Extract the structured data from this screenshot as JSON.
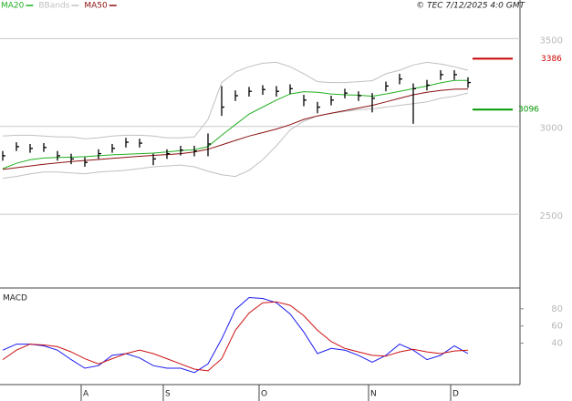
{
  "chart_data": {
    "type": "ohlc",
    "source": "© TEC 7/12/2025 4:0 GMT",
    "categories": [
      null,
      null,
      null,
      null,
      null,
      null,
      "A",
      null,
      null,
      null,
      null,
      null,
      "S",
      null,
      null,
      null,
      null,
      null,
      null,
      "O",
      null,
      null,
      null,
      null,
      null,
      null,
      null,
      "N",
      null,
      null,
      null,
      null,
      null,
      "D",
      null
    ],
    "bar_color": "#000000",
    "high": [
      2860,
      2910,
      2900,
      2905,
      2860,
      2845,
      2825,
      2870,
      2900,
      2935,
      2930,
      2845,
      2870,
      2890,
      2890,
      2960,
      3230,
      3205,
      3225,
      3235,
      3230,
      3240,
      3180,
      3140,
      3175,
      3215,
      3200,
      3190,
      3255,
      3300,
      3245,
      3265,
      3320,
      3320,
      3280
    ],
    "low": [
      2805,
      2860,
      2850,
      2855,
      2805,
      2785,
      2770,
      2815,
      2850,
      2880,
      2880,
      2780,
      2815,
      2835,
      2830,
      2830,
      3060,
      3145,
      3170,
      3180,
      3170,
      3185,
      3115,
      3075,
      3120,
      3160,
      3145,
      3080,
      3200,
      3240,
      3015,
      3205,
      3265,
      3265,
      3220
    ],
    "close": [
      2833,
      2885,
      2875,
      2880,
      2833,
      2815,
      2795,
      2845,
      2875,
      2910,
      2905,
      2815,
      2845,
      2865,
      2860,
      2900,
      3110,
      3175,
      3200,
      3210,
      3200,
      3215,
      3150,
      3110,
      3150,
      3190,
      3175,
      3160,
      3230,
      3270,
      3215,
      3235,
      3295,
      3295,
      3250
    ],
    "series": [
      {
        "name": "MA20",
        "color": "#22b022",
        "values": [
          2760,
          2790,
          2810,
          2820,
          2823,
          2825,
          2828,
          2833,
          2838,
          2842,
          2845,
          2848,
          2855,
          2862,
          2868,
          2885,
          2950,
          3010,
          3070,
          3110,
          3150,
          3185,
          3198,
          3195,
          3185,
          3180,
          3178,
          3172,
          3185,
          3200,
          3215,
          3230,
          3248,
          3262,
          3262
        ]
      },
      {
        "name": "BBands",
        "color": "#c0c0c0",
        "values": [
          2945,
          2950,
          2950,
          2945,
          2940,
          2940,
          2930,
          2935,
          2945,
          2950,
          2950,
          2945,
          2935,
          2935,
          2940,
          3040,
          3250,
          3310,
          3340,
          3360,
          3365,
          3340,
          3300,
          3255,
          3250,
          3250,
          3255,
          3260,
          3300,
          3320,
          3350,
          3365,
          3355,
          3340,
          3320
        ],
        "lower": [
          2705,
          2715,
          2730,
          2740,
          2740,
          2735,
          2730,
          2740,
          2745,
          2750,
          2760,
          2770,
          2775,
          2780,
          2770,
          2745,
          2725,
          2715,
          2750,
          2810,
          2890,
          2980,
          3030,
          3060,
          3075,
          3085,
          3095,
          3100,
          3110,
          3120,
          3130,
          3140,
          3160,
          3172,
          3190
        ]
      },
      {
        "name": "MA50",
        "color": "#8b1010",
        "values": [
          2755,
          2765,
          2775,
          2785,
          2792,
          2800,
          2806,
          2812,
          2818,
          2824,
          2830,
          2835,
          2840,
          2845,
          2855,
          2870,
          2895,
          2920,
          2945,
          2965,
          2985,
          3010,
          3040,
          3060,
          3075,
          3090,
          3105,
          3120,
          3140,
          3160,
          3180,
          3195,
          3205,
          3212,
          3213
        ]
      }
    ],
    "levels": [
      {
        "value": 3386,
        "color": "#cc0000"
      },
      {
        "value": 3096,
        "color": "#009900"
      }
    ],
    "ylim": [
      2080,
      3720
    ],
    "yticks": [
      2500,
      3000,
      3500
    ],
    "grid": true,
    "macd": {
      "title": "MACD",
      "ylim": [
        -8,
        102
      ],
      "yticks": [
        40,
        60,
        80
      ],
      "series": [
        {
          "color": "#1a1aee",
          "values": [
            32,
            39,
            39,
            37,
            32,
            21,
            11,
            14,
            26,
            28,
            23,
            14,
            11,
            11,
            6,
            16,
            45,
            79,
            93,
            92,
            87,
            74,
            53,
            28,
            34,
            32,
            26,
            18,
            26,
            39,
            32,
            21,
            26,
            37,
            28
          ]
        },
        {
          "color": "#cc1111",
          "values": [
            21,
            32,
            39,
            38,
            36,
            30,
            22,
            16,
            22,
            28,
            32,
            28,
            22,
            16,
            10,
            8,
            22,
            55,
            75,
            87,
            88,
            84,
            72,
            55,
            42,
            34,
            30,
            26,
            25,
            30,
            33,
            30,
            28,
            31,
            32
          ]
        }
      ]
    }
  }
}
